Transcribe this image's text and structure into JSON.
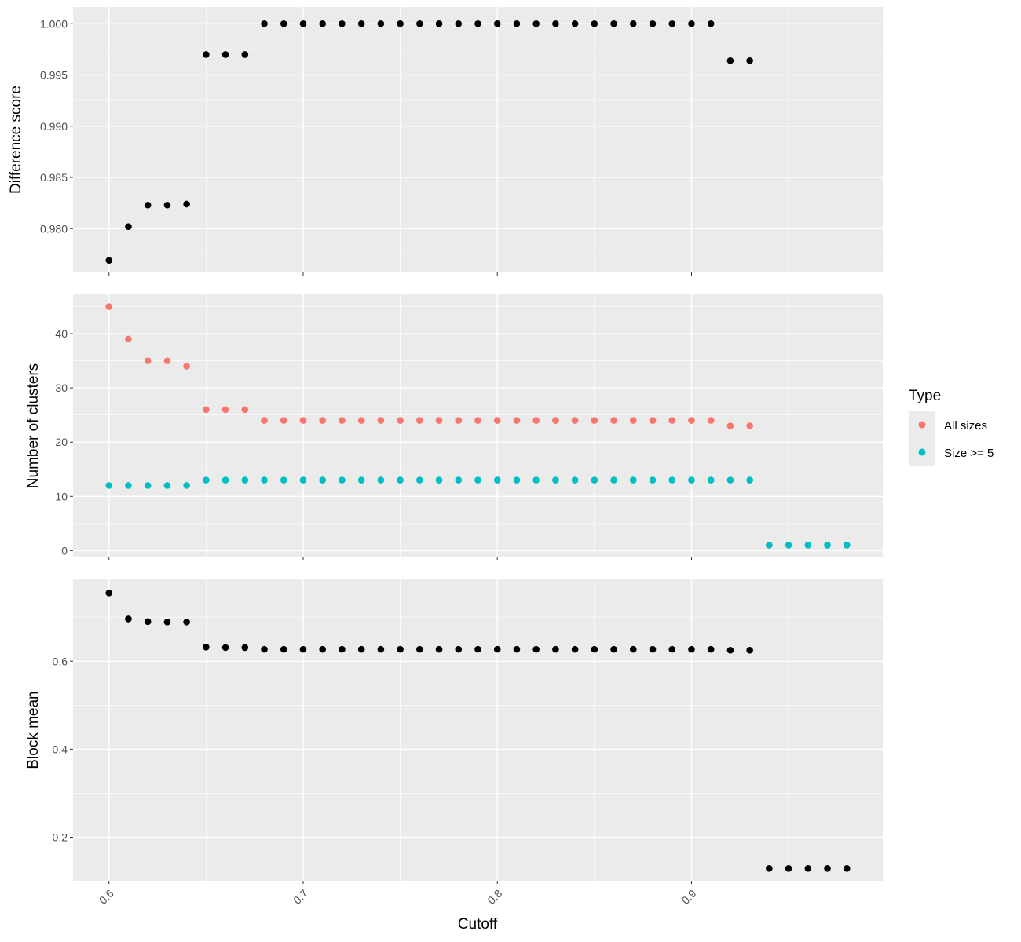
{
  "chart_data": {
    "type": "scatter",
    "xlabel": "Cutoff",
    "x_ticks": [
      0.6,
      0.7,
      0.8,
      0.9
    ],
    "x_tick_labels": [
      "0.6",
      "0.7",
      "0.8",
      "0.9"
    ],
    "xlim": [
      0.5815,
      0.9985
    ],
    "grid": true,
    "legend": {
      "title": "Type",
      "position": "right",
      "entries": [
        {
          "name": "All sizes",
          "color": "#F8766D"
        },
        {
          "name": "Size >= 5",
          "color": "#00BFC4"
        }
      ]
    },
    "panels": [
      {
        "ylabel": "Difference score",
        "ylim": [
          0.97573,
          1.00163
        ],
        "y_ticks": [
          0.98,
          0.985,
          0.99,
          0.995,
          1.0
        ],
        "y_tick_labels": [
          "0.980",
          "0.985",
          "0.990",
          "0.995",
          "1.000"
        ],
        "series": [
          {
            "color": "#000000",
            "x": [
              0.6,
              0.61,
              0.62,
              0.63,
              0.64,
              0.65,
              0.66,
              0.67,
              0.68,
              0.69,
              0.7,
              0.71,
              0.72,
              0.73,
              0.74,
              0.75,
              0.76,
              0.77,
              0.78,
              0.79,
              0.8,
              0.81,
              0.82,
              0.83,
              0.84,
              0.85,
              0.86,
              0.87,
              0.88,
              0.89,
              0.9,
              0.91,
              0.92,
              0.93
            ],
            "y": [
              0.9769,
              0.9802,
              0.9823,
              0.9823,
              0.9824,
              0.997,
              0.997,
              0.997,
              1.0,
              1.0,
              1.0,
              1.0,
              1.0,
              1.0,
              1.0,
              1.0,
              1.0,
              1.0,
              1.0,
              1.0,
              1.0,
              1.0,
              1.0,
              1.0,
              1.0,
              1.0,
              1.0,
              1.0,
              1.0,
              1.0,
              1.0,
              1.0,
              0.9964,
              0.9964
            ]
          }
        ]
      },
      {
        "ylabel": "Number of clusters",
        "ylim": [
          -1.25,
          47.25
        ],
        "y_ticks": [
          0,
          10,
          20,
          30,
          40
        ],
        "y_tick_labels": [
          "0",
          "10",
          "20",
          "30",
          "40"
        ],
        "series": [
          {
            "name": "All sizes",
            "color": "#F8766D",
            "x": [
              0.6,
              0.61,
              0.62,
              0.63,
              0.64,
              0.65,
              0.66,
              0.67,
              0.68,
              0.69,
              0.7,
              0.71,
              0.72,
              0.73,
              0.74,
              0.75,
              0.76,
              0.77,
              0.78,
              0.79,
              0.8,
              0.81,
              0.82,
              0.83,
              0.84,
              0.85,
              0.86,
              0.87,
              0.88,
              0.89,
              0.9,
              0.91,
              0.92,
              0.93
            ],
            "y": [
              45,
              39,
              35,
              35,
              34,
              26,
              26,
              26,
              24,
              24,
              24,
              24,
              24,
              24,
              24,
              24,
              24,
              24,
              24,
              24,
              24,
              24,
              24,
              24,
              24,
              24,
              24,
              24,
              24,
              24,
              24,
              24,
              23,
              23
            ]
          },
          {
            "name": "Size >= 5",
            "color": "#00BFC4",
            "x": [
              0.6,
              0.61,
              0.62,
              0.63,
              0.64,
              0.65,
              0.66,
              0.67,
              0.68,
              0.69,
              0.7,
              0.71,
              0.72,
              0.73,
              0.74,
              0.75,
              0.76,
              0.77,
              0.78,
              0.79,
              0.8,
              0.81,
              0.82,
              0.83,
              0.84,
              0.85,
              0.86,
              0.87,
              0.88,
              0.89,
              0.9,
              0.91,
              0.92,
              0.93,
              0.94,
              0.95,
              0.96,
              0.97,
              0.98
            ],
            "y": [
              12,
              12,
              12,
              12,
              12,
              13,
              13,
              13,
              13,
              13,
              13,
              13,
              13,
              13,
              13,
              13,
              13,
              13,
              13,
              13,
              13,
              13,
              13,
              13,
              13,
              13,
              13,
              13,
              13,
              13,
              13,
              13,
              13,
              13,
              1,
              1,
              1,
              1,
              1
            ]
          }
        ]
      },
      {
        "ylabel": "Block mean",
        "ylim": [
          0.101,
          0.786
        ],
        "y_ticks": [
          0.2,
          0.4,
          0.6
        ],
        "y_tick_labels": [
          "0.2",
          "0.4",
          "0.6"
        ],
        "series": [
          {
            "color": "#000000",
            "x": [
              0.6,
              0.61,
              0.62,
              0.63,
              0.64,
              0.65,
              0.66,
              0.67,
              0.68,
              0.69,
              0.7,
              0.71,
              0.72,
              0.73,
              0.74,
              0.75,
              0.76,
              0.77,
              0.78,
              0.79,
              0.8,
              0.81,
              0.82,
              0.83,
              0.84,
              0.85,
              0.86,
              0.87,
              0.88,
              0.89,
              0.9,
              0.91,
              0.92,
              0.93,
              0.94,
              0.95,
              0.96,
              0.97,
              0.98
            ],
            "y": [
              0.755,
              0.696,
              0.69,
              0.689,
              0.689,
              0.632,
              0.631,
              0.631,
              0.627,
              0.627,
              0.627,
              0.627,
              0.627,
              0.627,
              0.627,
              0.627,
              0.627,
              0.627,
              0.627,
              0.627,
              0.627,
              0.627,
              0.627,
              0.627,
              0.627,
              0.627,
              0.627,
              0.627,
              0.627,
              0.627,
              0.627,
              0.627,
              0.625,
              0.625,
              0.129,
              0.129,
              0.129,
              0.129,
              0.129
            ]
          }
        ]
      }
    ]
  }
}
